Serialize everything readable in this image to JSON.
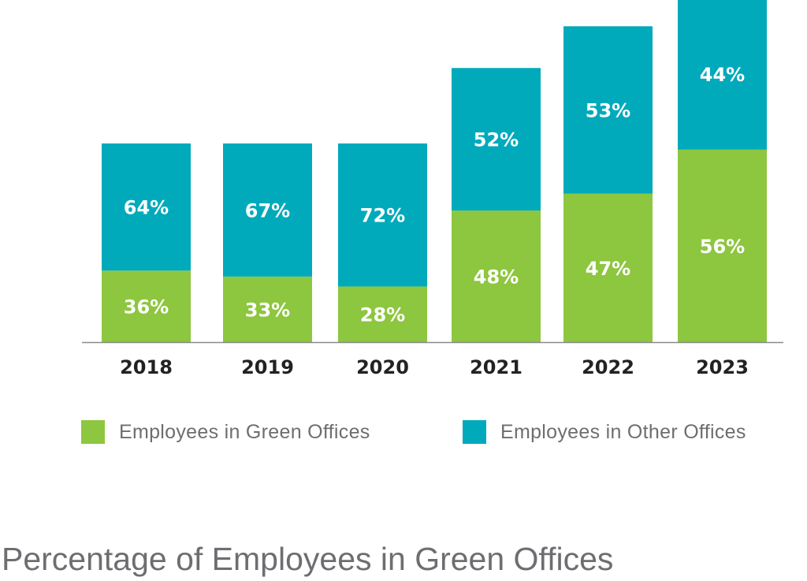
{
  "chart_data": {
    "type": "bar",
    "stacked": true,
    "title": "Percentage of Employees in Green Offices",
    "categories": [
      "2018",
      "2019",
      "2020",
      "2021",
      "2022",
      "2023"
    ],
    "relative_bar_totals": [
      100,
      100,
      100,
      138,
      159,
      173
    ],
    "series": [
      {
        "name": "Employees in Green Offices",
        "color": "#8dc63f",
        "values": [
          36,
          33,
          28,
          48,
          47,
          56
        ],
        "labels": [
          "36%",
          "33%",
          "28%",
          "48%",
          "47%",
          "56%"
        ]
      },
      {
        "name": "Employees in Other Offices",
        "color": "#00aabb",
        "values": [
          64,
          67,
          72,
          52,
          53,
          44
        ],
        "labels": [
          "64%",
          "67%",
          "72%",
          "52%",
          "53%",
          "44%"
        ]
      }
    ],
    "grid": false,
    "legend_position": "bottom"
  }
}
